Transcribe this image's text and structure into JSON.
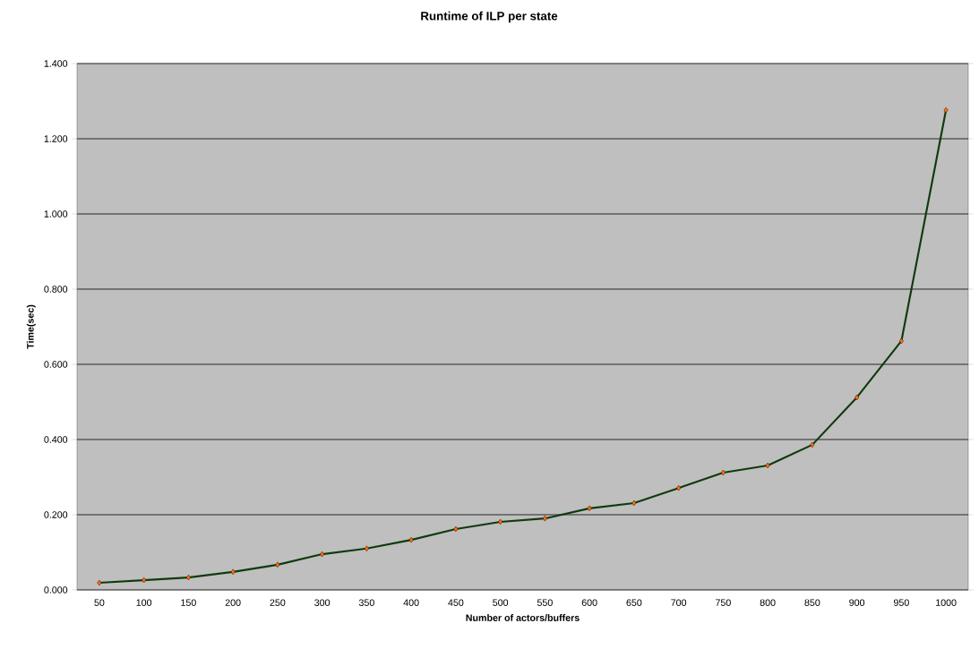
{
  "chart_data": {
    "type": "line",
    "title": "Runtime of ILP per state",
    "xlabel": "Number of actors/buffers",
    "ylabel": "Time(sec)",
    "categories": [
      "50",
      "100",
      "150",
      "200",
      "250",
      "300",
      "350",
      "400",
      "450",
      "500",
      "550",
      "600",
      "650",
      "700",
      "750",
      "800",
      "850",
      "900",
      "950",
      "1000"
    ],
    "series": [
      {
        "color": "#0f3a0f",
        "values": [
          0.019,
          0.026,
          0.033,
          0.048,
          0.067,
          0.095,
          0.11,
          0.133,
          0.162,
          0.181,
          0.19,
          0.217,
          0.231,
          0.271,
          0.312,
          0.331,
          0.386,
          0.512,
          0.662,
          1.276
        ]
      }
    ],
    "ylim": [
      0,
      1.4
    ],
    "yticks": [
      {
        "value": 0,
        "label": "0.000"
      },
      {
        "value": 0.2,
        "label": "0.200"
      },
      {
        "value": 0.4,
        "label": "0.400"
      },
      {
        "value": 0.6,
        "label": "0.600"
      },
      {
        "value": 0.8,
        "label": "0.800"
      },
      {
        "value": 1.0,
        "label": "1.000"
      },
      {
        "value": 1.2,
        "label": "1.200"
      },
      {
        "value": 1.4,
        "label": "1.400"
      }
    ],
    "grid": "y",
    "marker": "diamond",
    "line_style": "solid"
  }
}
